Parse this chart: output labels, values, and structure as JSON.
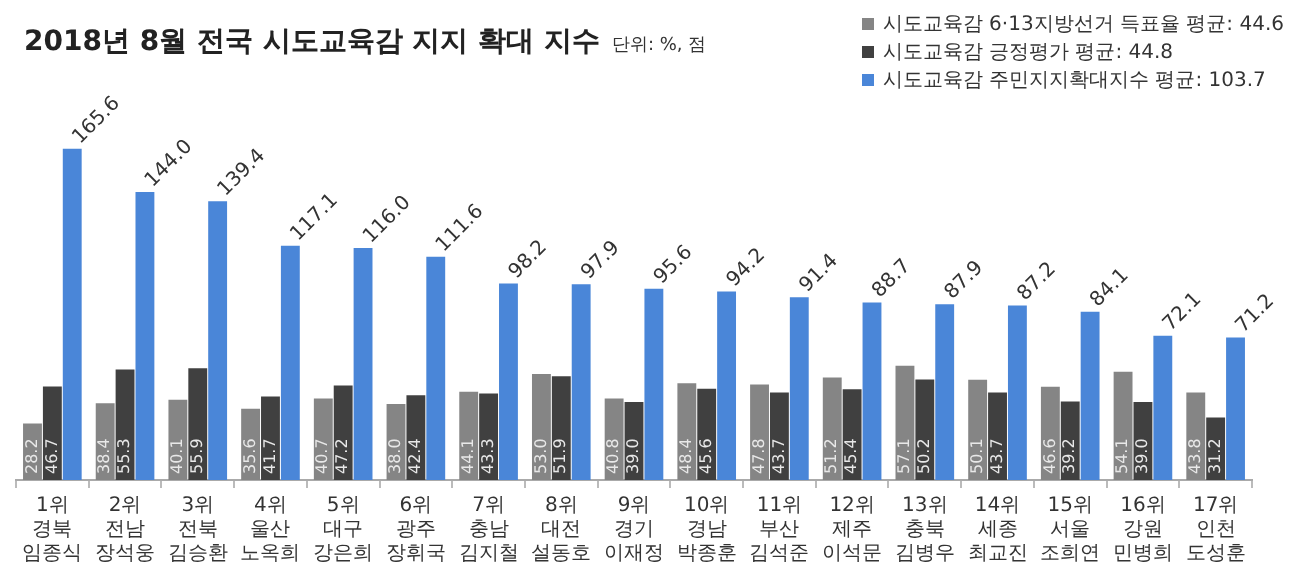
{
  "chart_data": {
    "type": "bar",
    "title": "2018년 8월 전국 시도교육감 지지 확대 지수",
    "subtitle": "단위: %, 점",
    "categories": [
      "1위\n경북\n임종식",
      "2위\n전남\n장석웅",
      "3위\n전북\n김승환",
      "4위\n울산\n노옥희",
      "5위\n대구\n강은희",
      "6위\n광주\n장휘국",
      "7위\n충남\n김지철",
      "8위\n대전\n설동호",
      "9위\n경기\n이재정",
      "10위\n경남\n박종훈",
      "11위\n부산\n김석준",
      "12위\n제주\n이석문",
      "13위\n충북\n김병우",
      "14위\n세종\n최교진",
      "15위\n서울\n조희연",
      "16위\n강원\n민병희",
      "17위\n인천\n도성훈"
    ],
    "series": [
      {
        "name": "시도교육감 6·13지방선거 득표율 평균: 44.6",
        "color": "#858585",
        "values": [
          28.2,
          38.4,
          40.1,
          35.6,
          40.7,
          38.0,
          44.1,
          53.0,
          40.8,
          48.4,
          47.8,
          51.2,
          57.1,
          50.1,
          46.6,
          54.1,
          43.8
        ],
        "value_labels": [
          "28.2",
          "38.4",
          "40.1",
          "35.6",
          "40.7",
          "38.0",
          "44.1",
          "53.0",
          "40.8",
          "48.4",
          "47.8",
          "51.2",
          "57.1",
          "50.1",
          "46.6",
          "54.1",
          "43.8"
        ]
      },
      {
        "name": "시도교육감 긍정평가 평균: 44.8",
        "color": "#404040",
        "values": [
          46.7,
          55.3,
          55.9,
          41.7,
          47.2,
          42.4,
          43.3,
          51.9,
          39.0,
          45.6,
          43.7,
          45.4,
          50.2,
          43.7,
          39.2,
          39.0,
          31.2
        ],
        "value_labels": [
          "46.7",
          "55.3",
          "55.9",
          "41.7",
          "47.2",
          "42.4",
          "43.3",
          "51.9",
          "39.0",
          "45.6",
          "43.7",
          "45.4",
          "50.2",
          "43.7",
          "39.2",
          "39.0",
          "31.2"
        ]
      },
      {
        "name": "시도교육감 주민지지확대지수 평균: 103.7",
        "color": "#4a86d8",
        "values": [
          165.6,
          144.0,
          139.4,
          117.1,
          116.0,
          111.6,
          98.2,
          97.9,
          95.6,
          94.2,
          91.4,
          88.7,
          87.9,
          87.2,
          84.1,
          72.1,
          71.2
        ],
        "value_labels": [
          "165.6",
          "144.0",
          "139.4",
          "117.1",
          "116.0",
          "111.6",
          "98.2",
          "97.9",
          "95.6",
          "94.2",
          "91.4",
          "88.7",
          "87.9",
          "87.2",
          "84.1",
          "72.1",
          "71.2"
        ]
      }
    ],
    "legend": "top right"
  }
}
